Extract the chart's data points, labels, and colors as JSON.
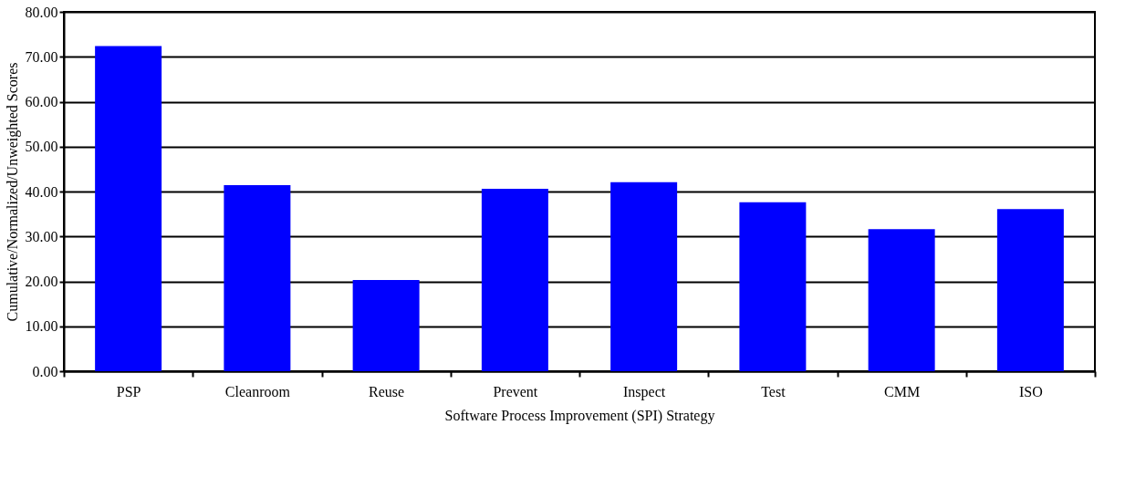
{
  "chart_data": {
    "type": "bar",
    "xlabel": "Software Process Improvement (SPI) Strategy",
    "ylabel": "Cumulative/Normalized/Unweighted Scores",
    "categories": [
      "PSP",
      "Cleanroom",
      "Reuse",
      "Prevent",
      "Inspect",
      "Test",
      "CMM",
      "ISO"
    ],
    "values": [
      72.4,
      41.4,
      20.3,
      40.6,
      42.1,
      37.6,
      31.6,
      36.1
    ],
    "color": "#0000ff",
    "ylim": [
      0,
      80
    ],
    "yticks": [
      {
        "value": 0,
        "label": "0.00"
      },
      {
        "value": 10,
        "label": "10.00"
      },
      {
        "value": 20,
        "label": "20.00"
      },
      {
        "value": 30,
        "label": "30.00"
      },
      {
        "value": 40,
        "label": "40.00"
      },
      {
        "value": 50,
        "label": "50.00"
      },
      {
        "value": 60,
        "label": "60.00"
      },
      {
        "value": 70,
        "label": "70.00"
      },
      {
        "value": 80,
        "label": "80.00"
      }
    ],
    "grid": "y"
  }
}
